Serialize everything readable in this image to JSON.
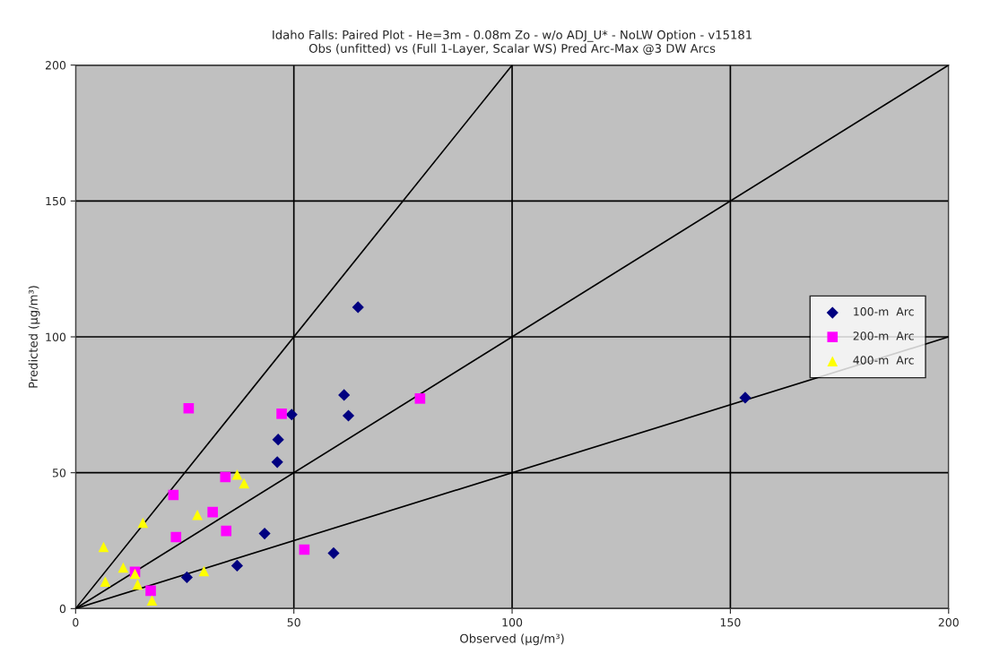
{
  "chart_data": {
    "type": "scatter",
    "title": "Idaho Falls: Paired Plot - He=3m - 0.08m Zo - w/o ADJ_U* - NoLW Option - v15181\nObs (unfitted) vs (Full 1-Layer, Scalar WS) Pred Arc-Max @3 DW Arcs",
    "xlabel": "Observed (µg/m³)",
    "ylabel": "Predicted (µg/m³)",
    "xlim": [
      0,
      200
    ],
    "ylim": [
      0,
      200
    ],
    "xticks": [
      0,
      50,
      100,
      150,
      200
    ],
    "yticks": [
      0,
      50,
      100,
      150,
      200
    ],
    "grid": true,
    "legend": "right",
    "series": [
      {
        "name": "100-m  Arc",
        "color": "#000080",
        "marker": "diamond",
        "x": [
          64.7,
          61.5,
          62.5,
          49.5,
          46.4,
          46.2,
          43.3,
          59.1,
          37.0,
          25.5,
          153.4
        ],
        "values": [
          110.9,
          78.6,
          71.0,
          71.4,
          62.2,
          53.9,
          27.6,
          20.4,
          15.8,
          11.5,
          77.6
        ]
      },
      {
        "name": "200-m  Arc",
        "color": "#ff00ff",
        "marker": "square",
        "x": [
          25.9,
          47.2,
          78.9,
          34.3,
          22.4,
          31.4,
          23.0,
          34.5,
          52.4,
          13.6,
          17.2
        ],
        "values": [
          73.7,
          71.7,
          77.3,
          48.4,
          41.8,
          35.5,
          26.3,
          28.6,
          21.7,
          13.5,
          6.6
        ]
      },
      {
        "name": "400-m  Arc",
        "color": "#ffff00",
        "marker": "triangle",
        "x": [
          6.4,
          15.4,
          10.9,
          6.8,
          13.6,
          14.2,
          17.5,
          27.9,
          37.0,
          38.6,
          29.4
        ],
        "values": [
          22.7,
          31.6,
          15.1,
          9.9,
          12.8,
          8.9,
          3.0,
          34.5,
          49.3,
          46.1,
          13.8
        ]
      },
      {
        "type": "line",
        "color": "#000000",
        "x": [
          0,
          100
        ],
        "values": [
          0,
          200
        ]
      },
      {
        "type": "line",
        "color": "#000000",
        "x": [
          0,
          200
        ],
        "values": [
          0,
          200
        ]
      },
      {
        "type": "line",
        "color": "#000000",
        "x": [
          0,
          200
        ],
        "values": [
          0,
          100
        ]
      }
    ]
  }
}
